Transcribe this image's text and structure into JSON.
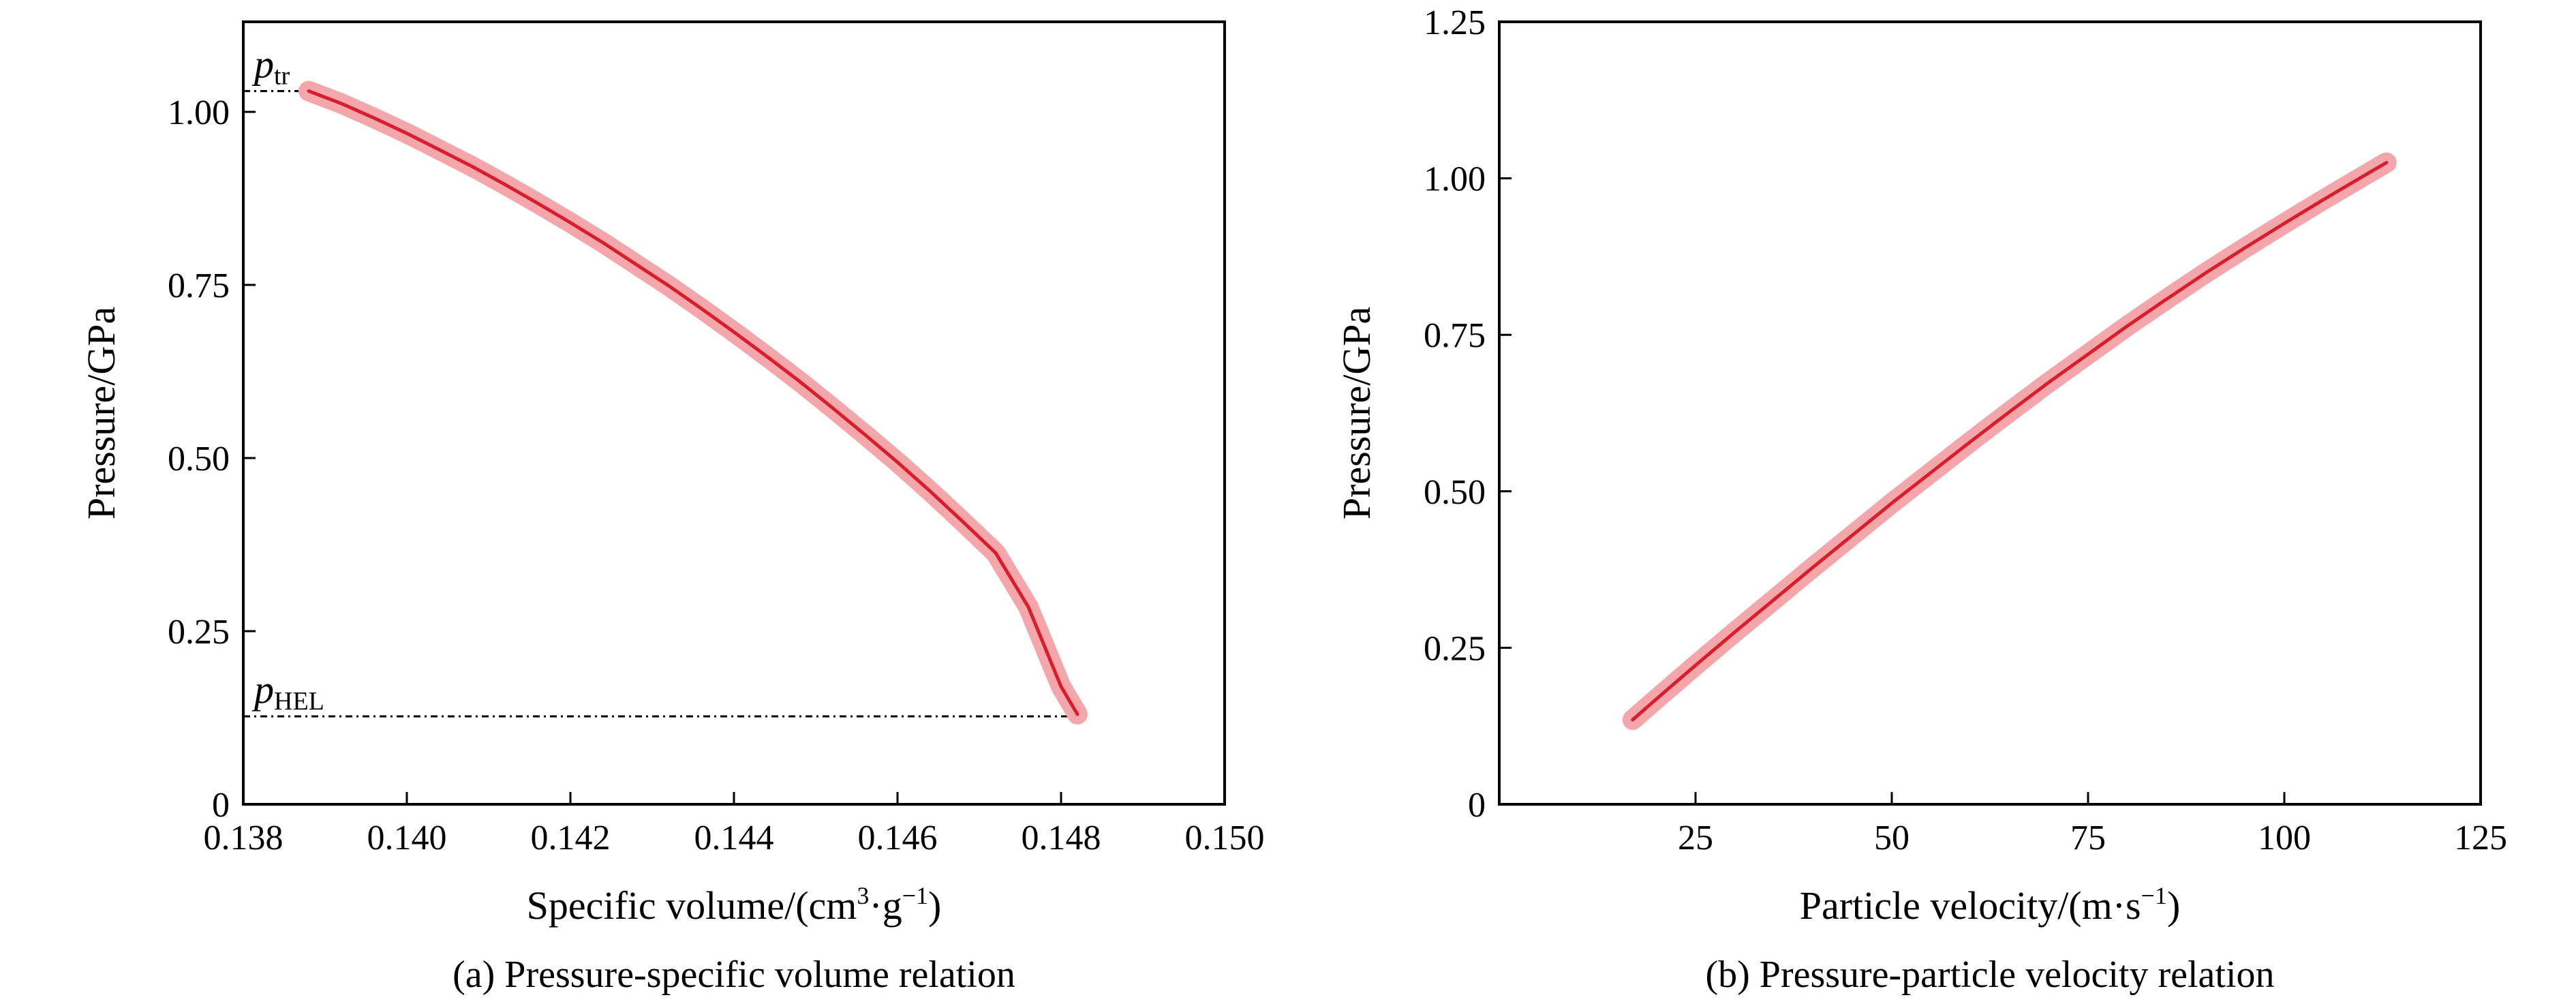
{
  "chart_data": [
    {
      "type": "line",
      "caption": "(a) Pressure-specific volume relation",
      "xlabel_text": "Specific volume/(cm",
      "xlabel_sup1": "3",
      "xlabel_mid": "·g",
      "xlabel_sup2": "−1",
      "xlabel_end": ")",
      "ylabel": "Pressure/GPa",
      "xlim": [
        0.138,
        0.15
      ],
      "ylim": [
        0,
        1.13
      ],
      "xticks": [
        "0.138",
        "0.140",
        "0.142",
        "0.144",
        "0.146",
        "0.148",
        "0.150"
      ],
      "yticks": [
        "0",
        "0.25",
        "0.50",
        "0.75",
        "1.00"
      ],
      "series": [
        {
          "x": [
            0.1388,
            0.1392,
            0.1396,
            0.14,
            0.1404,
            0.1408,
            0.1412,
            0.1416,
            0.142,
            0.1424,
            0.1428,
            0.1432,
            0.1436,
            0.144,
            0.1444,
            0.1448,
            0.1452,
            0.1456,
            0.146,
            0.1464,
            0.1468,
            0.1472,
            0.1476,
            0.148,
            0.1482
          ],
          "y": [
            1.03,
            1.012,
            0.991,
            0.969,
            0.945,
            0.921,
            0.895,
            0.868,
            0.84,
            0.811,
            0.78,
            0.749,
            0.716,
            0.682,
            0.647,
            0.611,
            0.573,
            0.534,
            0.494,
            0.452,
            0.408,
            0.363,
            0.285,
            0.17,
            0.13
          ]
        }
      ],
      "line_color": "#d81e2c",
      "band_color": "#f3a7ab",
      "reference_lines": [
        {
          "label": "p",
          "subscript": "tr",
          "y": 1.03,
          "x_start": 0.138,
          "x_end": 0.1388
        },
        {
          "label": "p",
          "subscript": "HEL",
          "y": 0.127,
          "x_start": 0.138,
          "x_end": 0.1482
        }
      ]
    },
    {
      "type": "line",
      "caption": "(b) Pressure-particle velocity relation",
      "xlabel_text": "Particle velocity/(m·s",
      "xlabel_sup": "−1",
      "xlabel_end": ")",
      "ylabel": "Pressure/GPa",
      "xlim": [
        0,
        125
      ],
      "ylim": [
        0,
        1.25
      ],
      "xticks": [
        "25",
        "50",
        "75",
        "100",
        "125"
      ],
      "yticks": [
        "0",
        "0.25",
        "0.50",
        "0.75",
        "1.00",
        "1.25"
      ],
      "series": [
        {
          "x": [
            17,
            20,
            25,
            30,
            35,
            40,
            45,
            50,
            55,
            60,
            65,
            70,
            75,
            80,
            85,
            90,
            95,
            100,
            105,
            110,
            113
          ],
          "y": [
            0.135,
            0.168,
            0.222,
            0.275,
            0.327,
            0.379,
            0.43,
            0.481,
            0.53,
            0.579,
            0.627,
            0.674,
            0.719,
            0.764,
            0.807,
            0.849,
            0.889,
            0.928,
            0.966,
            1.003,
            1.025
          ]
        }
      ],
      "line_color": "#d81e2c",
      "band_color": "#f3a7ab"
    }
  ]
}
